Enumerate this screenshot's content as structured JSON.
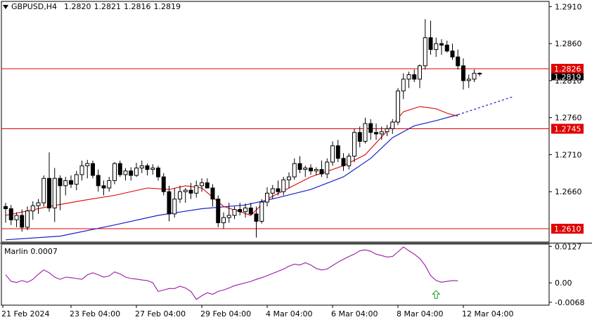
{
  "header": {
    "symbol": "GBPUSD,H4",
    "open": "1.2820",
    "high": "1.2821",
    "low": "1.2816",
    "close": "1.2819"
  },
  "oscillator": {
    "label": "Marlin 0.0007"
  },
  "colors": {
    "background": "#ffffff",
    "candle": "#000000",
    "ma_fast": "#e00000",
    "ma_slow": "#1a20c8",
    "level_line": "#e00000",
    "oscillator": "#9a1aa6",
    "signal_arrow": "#1a9a1a"
  },
  "chart_data": [
    {
      "type": "candlestick",
      "symbol": "GBPUSD",
      "timeframe": "H4",
      "ylim": [
        1.2592,
        1.2917
      ],
      "yticks": [
        {
          "label": "1.2910",
          "value": 1.291
        },
        {
          "label": "1.2860",
          "value": 1.286
        },
        {
          "label": "1.2810",
          "value": 1.281
        },
        {
          "label": "1.2760",
          "value": 1.276
        },
        {
          "label": "1.2710",
          "value": 1.271
        },
        {
          "label": "1.2660",
          "value": 1.266
        }
      ],
      "xticks": [
        "21 Feb 2024",
        "23 Feb 04:00",
        "27 Feb 04:00",
        "29 Feb 04:00",
        "4 Mar 04:00",
        "6 Mar 04:00",
        "8 Mar 04:00",
        "12 Mar 04:00"
      ],
      "xtick_bar_index": [
        0,
        12,
        24,
        36,
        48,
        60,
        72,
        84
      ],
      "levels": [
        {
          "value": 1.2826,
          "label": "1.2826"
        },
        {
          "value": 1.2745,
          "label": "1.2745"
        },
        {
          "value": 1.261,
          "label": "1.2610"
        }
      ],
      "current_price": "1.2819",
      "ohlc": [
        [
          1.264,
          1.2645,
          1.2618,
          1.2637
        ],
        [
          1.2637,
          1.2642,
          1.2615,
          1.2622
        ],
        [
          1.2622,
          1.2632,
          1.2612,
          1.2628
        ],
        [
          1.2628,
          1.2636,
          1.2606,
          1.2612
        ],
        [
          1.2612,
          1.264,
          1.2608,
          1.2634
        ],
        [
          1.2634,
          1.2647,
          1.2622,
          1.2641
        ],
        [
          1.2641,
          1.265,
          1.263,
          1.2645
        ],
        [
          1.2645,
          1.2682,
          1.264,
          1.2678
        ],
        [
          1.2678,
          1.2713,
          1.2633,
          1.2638
        ],
        [
          1.2638,
          1.2692,
          1.2619,
          1.2678
        ],
        [
          1.2678,
          1.2682,
          1.2635,
          1.2668
        ],
        [
          1.2668,
          1.268,
          1.2655,
          1.2675
        ],
        [
          1.2675,
          1.2682,
          1.2665,
          1.267
        ],
        [
          1.267,
          1.2688,
          1.2662,
          1.2683
        ],
        [
          1.2683,
          1.2702,
          1.2675,
          1.2695
        ],
        [
          1.2695,
          1.2703,
          1.2678,
          1.2698
        ],
        [
          1.2698,
          1.2702,
          1.2678,
          1.2682
        ],
        [
          1.2682,
          1.269,
          1.266,
          1.2668
        ],
        [
          1.2668,
          1.2675,
          1.2655,
          1.2665
        ],
        [
          1.2665,
          1.268,
          1.266,
          1.2675
        ],
        [
          1.2675,
          1.27,
          1.267,
          1.2698
        ],
        [
          1.2698,
          1.2702,
          1.268,
          1.2683
        ],
        [
          1.2683,
          1.2692,
          1.2675,
          1.2688
        ],
        [
          1.2688,
          1.2693,
          1.2675,
          1.2682
        ],
        [
          1.2682,
          1.2699,
          1.268,
          1.2692
        ],
        [
          1.2692,
          1.2702,
          1.2685,
          1.2695
        ],
        [
          1.2695,
          1.2698,
          1.2682,
          1.269
        ],
        [
          1.269,
          1.2697,
          1.2683,
          1.2692
        ],
        [
          1.2692,
          1.2695,
          1.2675,
          1.268
        ],
        [
          1.268,
          1.2685,
          1.2655,
          1.266
        ],
        [
          1.266,
          1.2668,
          1.262,
          1.263
        ],
        [
          1.263,
          1.2665,
          1.2625,
          1.265
        ],
        [
          1.265,
          1.2668,
          1.2645,
          1.266
        ],
        [
          1.266,
          1.2665,
          1.2645,
          1.2662
        ],
        [
          1.2662,
          1.2672,
          1.265,
          1.2658
        ],
        [
          1.2658,
          1.2675,
          1.2652,
          1.2668
        ],
        [
          1.2668,
          1.2678,
          1.266,
          1.2672
        ],
        [
          1.2672,
          1.2678,
          1.2665,
          1.2665
        ],
        [
          1.2665,
          1.267,
          1.264,
          1.265
        ],
        [
          1.265,
          1.2655,
          1.2612,
          1.2618
        ],
        [
          1.2618,
          1.2632,
          1.261,
          1.2625
        ],
        [
          1.2625,
          1.2645,
          1.2618,
          1.2628
        ],
        [
          1.2628,
          1.264,
          1.2623,
          1.2636
        ],
        [
          1.2636,
          1.2645,
          1.2628,
          1.2633
        ],
        [
          1.2633,
          1.2644,
          1.2625,
          1.2638
        ],
        [
          1.2638,
          1.2645,
          1.2628,
          1.263
        ],
        [
          1.263,
          1.264,
          1.2598,
          1.262
        ],
        [
          1.262,
          1.265,
          1.2617,
          1.2646
        ],
        [
          1.2646,
          1.2666,
          1.264,
          1.2658
        ],
        [
          1.2658,
          1.2669,
          1.265,
          1.2664
        ],
        [
          1.2664,
          1.2675,
          1.2655,
          1.266
        ],
        [
          1.266,
          1.268,
          1.2655,
          1.2676
        ],
        [
          1.2676,
          1.2686,
          1.2665,
          1.268
        ],
        [
          1.268,
          1.2705,
          1.2676,
          1.2698
        ],
        [
          1.2698,
          1.2708,
          1.2685,
          1.269
        ],
        [
          1.269,
          1.2695,
          1.268,
          1.2692
        ],
        [
          1.2692,
          1.2697,
          1.2683,
          1.2688
        ],
        [
          1.2688,
          1.2693,
          1.2682,
          1.269
        ],
        [
          1.269,
          1.2702,
          1.268,
          1.2684
        ],
        [
          1.2684,
          1.2705,
          1.2678,
          1.27
        ],
        [
          1.27,
          1.2728,
          1.2695,
          1.2722
        ],
        [
          1.2722,
          1.273,
          1.27,
          1.2705
        ],
        [
          1.2705,
          1.2712,
          1.2688,
          1.2695
        ],
        [
          1.2695,
          1.2712,
          1.269,
          1.2708
        ],
        [
          1.2708,
          1.2745,
          1.27,
          1.274
        ],
        [
          1.274,
          1.2748,
          1.272,
          1.2728
        ],
        [
          1.2728,
          1.276,
          1.2725,
          1.2752
        ],
        [
          1.2752,
          1.2758,
          1.273,
          1.274
        ],
        [
          1.274,
          1.2752,
          1.273,
          1.2738
        ],
        [
          1.2738,
          1.2748,
          1.273,
          1.2741
        ],
        [
          1.2741,
          1.275,
          1.2735,
          1.2745
        ],
        [
          1.2745,
          1.2758,
          1.2738,
          1.2754
        ],
        [
          1.2754,
          1.28,
          1.275,
          1.2796
        ],
        [
          1.2796,
          1.282,
          1.2785,
          1.2812
        ],
        [
          1.2812,
          1.2822,
          1.28,
          1.2818
        ],
        [
          1.2818,
          1.2825,
          1.2808,
          1.2812
        ],
        [
          1.2812,
          1.2832,
          1.28,
          1.283
        ],
        [
          1.283,
          1.2893,
          1.2825,
          1.2868
        ],
        [
          1.2868,
          1.2891,
          1.2845,
          1.2852
        ],
        [
          1.2852,
          1.2868,
          1.2842,
          1.286
        ],
        [
          1.286,
          1.2866,
          1.2845,
          1.2858
        ],
        [
          1.2858,
          1.2864,
          1.2848,
          1.285
        ],
        [
          1.285,
          1.286,
          1.2838,
          1.2842
        ],
        [
          1.2842,
          1.2852,
          1.2825,
          1.283
        ],
        [
          1.283,
          1.284,
          1.2798,
          1.281
        ],
        [
          1.281,
          1.2818,
          1.28,
          1.2812
        ],
        [
          1.2812,
          1.2825,
          1.2808,
          1.282
        ],
        [
          1.282,
          1.2821,
          1.2816,
          1.2819
        ]
      ],
      "ma_fast": [
        [
          0,
          1.2628
        ],
        [
          8,
          1.264
        ],
        [
          14,
          1.2648
        ],
        [
          20,
          1.2655
        ],
        [
          26,
          1.2665
        ],
        [
          30,
          1.2663
        ],
        [
          33,
          1.2668
        ],
        [
          36,
          1.2665
        ],
        [
          40,
          1.264
        ],
        [
          45,
          1.2628
        ],
        [
          48,
          1.265
        ],
        [
          52,
          1.2665
        ],
        [
          56,
          1.268
        ],
        [
          62,
          1.2695
        ],
        [
          66,
          1.271
        ],
        [
          70,
          1.2742
        ],
        [
          73,
          1.2768
        ],
        [
          76,
          1.2775
        ],
        [
          79,
          1.2772
        ],
        [
          81,
          1.2766
        ],
        [
          83,
          1.2762
        ]
      ],
      "ma_slow": [
        [
          0,
          1.2595
        ],
        [
          10,
          1.26
        ],
        [
          20,
          1.2615
        ],
        [
          28,
          1.2628
        ],
        [
          36,
          1.2637
        ],
        [
          44,
          1.2642
        ],
        [
          50,
          1.2652
        ],
        [
          56,
          1.2663
        ],
        [
          62,
          1.268
        ],
        [
          67,
          1.2705
        ],
        [
          71,
          1.2733
        ],
        [
          75,
          1.2749
        ],
        [
          79,
          1.2756
        ],
        [
          83,
          1.2764
        ]
      ],
      "ma_slow_projection": [
        [
          83,
          1.2764
        ],
        [
          93,
          1.2788
        ]
      ]
    },
    {
      "type": "line",
      "series_name": "Marlin",
      "ylim": [
        -0.0078,
        0.0135
      ],
      "yticks": [
        {
          "label": "0.0127",
          "value": 0.0127
        },
        {
          "label": "0.00",
          "value": 0.0
        },
        {
          "label": "-0.0068",
          "value": -0.0068
        }
      ],
      "zero_line": 0,
      "signal_arrow": {
        "bar_index": 79,
        "value": -0.0042,
        "direction": "up"
      },
      "values": [
        0.0028,
        0.0005,
        0.0001,
        0.0008,
        0.0002,
        0.0012,
        0.003,
        0.0045,
        0.0035,
        0.002,
        0.0012,
        0.002,
        0.0018,
        0.0015,
        0.0012,
        0.0028,
        0.0035,
        0.0028,
        0.002,
        0.0024,
        0.0038,
        0.0031,
        0.002,
        0.0015,
        0.0013,
        0.001,
        0.0008,
        0.0,
        -0.003,
        -0.0025,
        -0.002,
        -0.002,
        -0.0012,
        -0.0018,
        -0.003,
        -0.0058,
        -0.0045,
        -0.0035,
        -0.004,
        -0.003,
        -0.0025,
        -0.0018,
        -0.001,
        -0.0005,
        0.0,
        0.0005,
        0.0012,
        0.0018,
        0.0025,
        0.0033,
        0.004,
        0.0048,
        0.0058,
        0.0065,
        0.0062,
        0.007,
        0.0062,
        0.005,
        0.0045,
        0.0048,
        0.006,
        0.0072,
        0.0082,
        0.0092,
        0.01,
        0.0112,
        0.0115,
        0.011,
        0.01,
        0.0095,
        0.009,
        0.0092,
        0.0108,
        0.0125,
        0.0112,
        0.01,
        0.0085,
        0.006,
        0.0025,
        0.0008,
        0.0002,
        0.0005,
        0.0008,
        0.0007
      ]
    }
  ]
}
